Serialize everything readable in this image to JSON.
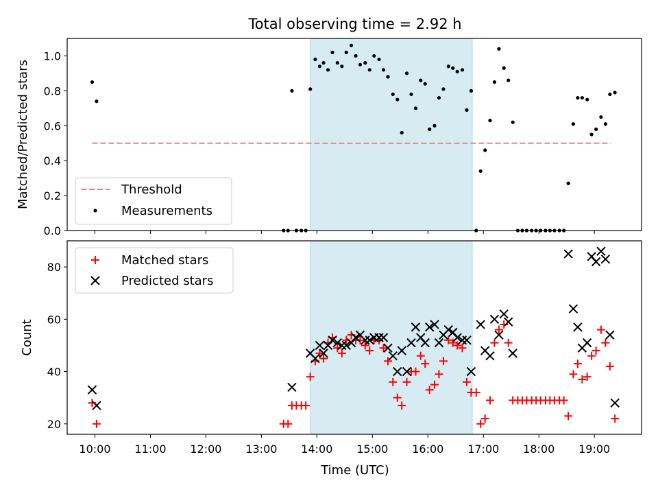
{
  "figure": {
    "title": "Total observing time = 2.92 h",
    "xlabel": "Time (UTC)"
  },
  "chart_data": [
    {
      "type": "scatter",
      "ylabel": "Matched/Predicted stars",
      "xlim": [
        9.5,
        19.85
      ],
      "ylim": [
        0,
        1.1
      ],
      "yticks": [
        0.0,
        0.2,
        0.4,
        0.6,
        0.8,
        1.0
      ],
      "shaded_span": {
        "x_start": 13.88,
        "x_end": 16.8
      },
      "legend": {
        "position": "lower-left",
        "entries": [
          "Threshold",
          "Measurements"
        ]
      },
      "series": [
        {
          "name": "Threshold",
          "kind": "dashed-line",
          "color": "#f08080",
          "x": [
            9.95,
            19.3
          ],
          "y": [
            0.5,
            0.5
          ]
        },
        {
          "name": "Measurements",
          "kind": "dot",
          "color": "#000000",
          "x": [
            9.95,
            10.03,
            13.4,
            13.48,
            13.55,
            13.63,
            13.72,
            13.8,
            13.88,
            13.97,
            14.05,
            14.12,
            14.2,
            14.28,
            14.37,
            14.45,
            14.53,
            14.62,
            14.7,
            14.78,
            14.87,
            14.95,
            15.03,
            15.12,
            15.2,
            15.28,
            15.37,
            15.45,
            15.53,
            15.62,
            15.7,
            15.78,
            15.87,
            15.95,
            16.03,
            16.12,
            16.2,
            16.28,
            16.37,
            16.45,
            16.53,
            16.62,
            16.7,
            16.78,
            16.87,
            16.95,
            17.03,
            17.12,
            17.2,
            17.28,
            17.37,
            17.45,
            17.53,
            17.62,
            17.7,
            17.78,
            17.87,
            17.95,
            18.03,
            18.12,
            18.2,
            18.28,
            18.37,
            18.45,
            18.53,
            18.62,
            18.7,
            18.78,
            18.87,
            18.95,
            19.03,
            19.12,
            19.2,
            19.28,
            19.37
          ],
          "y": [
            0.85,
            0.74,
            0.0,
            0.0,
            0.8,
            0.0,
            0.0,
            0.0,
            0.81,
            0.98,
            0.94,
            0.96,
            0.92,
            1.02,
            0.96,
            0.94,
            1.02,
            1.06,
            1.0,
            0.95,
            0.96,
            0.92,
            1.0,
            0.98,
            0.92,
            0.88,
            0.78,
            0.75,
            0.56,
            0.9,
            0.78,
            0.7,
            0.86,
            0.84,
            0.58,
            0.6,
            0.76,
            0.81,
            0.94,
            0.93,
            0.91,
            0.92,
            0.69,
            0.8,
            0.0,
            0.34,
            0.46,
            0.63,
            0.85,
            1.04,
            0.93,
            0.86,
            0.62,
            0.0,
            0.0,
            0.0,
            0.0,
            0.0,
            0.0,
            0.0,
            0.0,
            0.0,
            0.0,
            0.0,
            0.27,
            0.61,
            0.76,
            0.76,
            0.75,
            0.55,
            0.58,
            0.65,
            0.61,
            0.78,
            0.79
          ]
        }
      ]
    },
    {
      "type": "scatter",
      "ylabel": "Count",
      "xlim": [
        9.5,
        19.85
      ],
      "ylim": [
        16,
        90
      ],
      "yticks": [
        20,
        40,
        60,
        80
      ],
      "xticks": [
        10,
        11,
        12,
        13,
        14,
        15,
        16,
        17,
        18,
        19
      ],
      "xticklabels": [
        "10:00",
        "11:00",
        "12:00",
        "13:00",
        "14:00",
        "15:00",
        "16:00",
        "17:00",
        "18:00",
        "19:00"
      ],
      "shaded_span": {
        "x_start": 13.88,
        "x_end": 16.8
      },
      "legend": {
        "position": "upper-left",
        "entries": [
          "Matched stars",
          "Predicted stars"
        ]
      },
      "series": [
        {
          "name": "Matched stars",
          "marker": "plus",
          "color": "#ff0000",
          "x": [
            9.95,
            10.03,
            13.4,
            13.48,
            13.55,
            13.63,
            13.72,
            13.8,
            13.88,
            13.97,
            14.05,
            14.12,
            14.2,
            14.28,
            14.37,
            14.45,
            14.53,
            14.62,
            14.7,
            14.78,
            14.87,
            14.95,
            15.03,
            15.12,
            15.2,
            15.28,
            15.37,
            15.45,
            15.53,
            15.62,
            15.7,
            15.78,
            15.87,
            15.95,
            16.03,
            16.12,
            16.2,
            16.28,
            16.37,
            16.45,
            16.53,
            16.62,
            16.7,
            16.78,
            16.87,
            16.95,
            17.03,
            17.12,
            17.2,
            17.28,
            17.37,
            17.45,
            17.53,
            17.62,
            17.7,
            17.78,
            17.87,
            17.95,
            18.03,
            18.12,
            18.2,
            18.28,
            18.37,
            18.45,
            18.53,
            18.62,
            18.7,
            18.78,
            18.87,
            18.95,
            19.03,
            19.12,
            19.2,
            19.28,
            19.37
          ],
          "y": [
            28,
            20,
            20,
            20,
            27,
            27,
            27,
            27,
            38,
            44,
            47,
            45,
            51,
            53,
            49,
            47,
            52,
            54,
            52,
            52,
            50,
            48,
            52,
            52,
            49,
            44,
            36,
            30,
            27,
            36,
            40,
            40,
            46,
            43,
            33,
            35,
            39,
            44,
            52,
            51,
            50,
            49,
            36,
            32,
            32,
            20,
            22,
            29,
            51,
            56,
            58,
            51,
            29,
            29,
            29,
            29,
            29,
            29,
            29,
            29,
            29,
            29,
            29,
            29,
            23,
            39,
            43,
            37,
            38,
            46,
            48,
            56,
            51,
            42,
            22
          ]
        },
        {
          "name": "Predicted stars",
          "marker": "cross",
          "color": "#000000",
          "x": [
            9.95,
            10.03,
            13.55,
            13.88,
            13.97,
            14.05,
            14.12,
            14.2,
            14.28,
            14.37,
            14.45,
            14.53,
            14.62,
            14.7,
            14.78,
            14.87,
            14.95,
            15.03,
            15.12,
            15.2,
            15.28,
            15.37,
            15.45,
            15.53,
            15.62,
            15.7,
            15.78,
            15.87,
            15.95,
            16.03,
            16.12,
            16.2,
            16.28,
            16.37,
            16.45,
            16.53,
            16.62,
            16.7,
            16.78,
            16.95,
            17.03,
            17.12,
            17.2,
            17.28,
            17.37,
            17.45,
            17.53,
            18.53,
            18.62,
            18.7,
            18.78,
            18.87,
            18.95,
            19.03,
            19.12,
            19.2,
            19.28,
            19.37
          ],
          "y": [
            33,
            27,
            34,
            47,
            45,
            50,
            47,
            50,
            52,
            51,
            50,
            50,
            51,
            53,
            54,
            52,
            52,
            53,
            53,
            53,
            49,
            46,
            40,
            48,
            40,
            51,
            57,
            53,
            51,
            57,
            58,
            51,
            54,
            56,
            55,
            53,
            52,
            52,
            40,
            58,
            48,
            46,
            60,
            54,
            62,
            59,
            47,
            85,
            64,
            57,
            49,
            51,
            84,
            82,
            86,
            83,
            54,
            28
          ]
        }
      ]
    }
  ]
}
